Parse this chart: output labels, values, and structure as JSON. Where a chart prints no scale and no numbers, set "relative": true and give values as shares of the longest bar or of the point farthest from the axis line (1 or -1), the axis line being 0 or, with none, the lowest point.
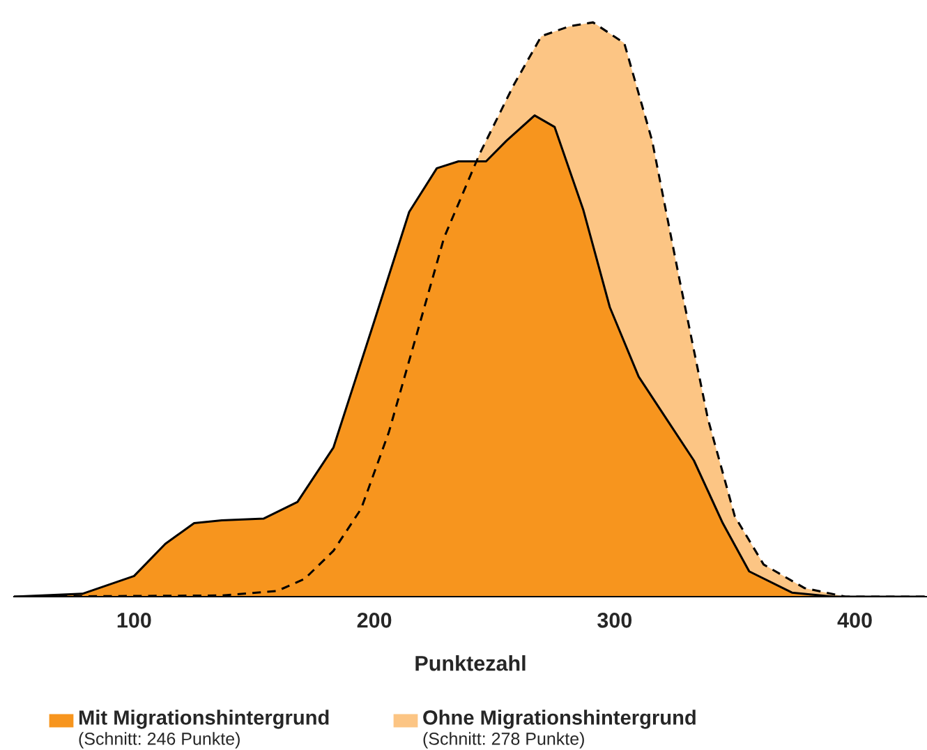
{
  "chart_data": {
    "type": "area",
    "relative": true,
    "xlabel": "Punktezahl",
    "xlim": [
      50,
      430
    ],
    "xticks": [
      100,
      200,
      300,
      400
    ],
    "legend": "bottom",
    "grid": false,
    "annotations": [
      "(Schnitt: 246 Punkte)",
      "(Schnitt: 278 Punkte)"
    ],
    "series": [
      {
        "name": "Mit Migrationshintergrund",
        "color": "#f7951e",
        "line_style": "solid",
        "x": [
          50,
          78.5,
          100,
          113,
          125,
          136.5,
          154,
          168,
          183,
          200,
          214.5,
          226,
          235,
          246.5,
          255,
          266.7,
          275,
          287,
          298,
          310,
          321.5,
          333,
          345,
          356,
          373.8,
          391,
          429
        ],
        "values": [
          0,
          0.005,
          0.036,
          0.092,
          0.128,
          0.133,
          0.136,
          0.165,
          0.26,
          0.48,
          0.67,
          0.746,
          0.758,
          0.758,
          0.794,
          0.838,
          0.818,
          0.673,
          0.504,
          0.383,
          0.31,
          0.237,
          0.128,
          0.044,
          0.007,
          0,
          0
        ]
      },
      {
        "name": "Ohne Migrationshintergrund",
        "color": "#fcc584",
        "line_style": "dashed",
        "x": [
          50,
          136.5,
          159.6,
          171,
          183,
          194.5,
          206,
          217.5,
          229,
          243.7,
          258,
          269.5,
          281,
          291,
          304,
          315.6,
          327,
          338.8,
          350,
          362,
          379,
          396,
          429
        ],
        "values": [
          0,
          0.002,
          0.01,
          0.031,
          0.08,
          0.153,
          0.286,
          0.455,
          0.625,
          0.77,
          0.891,
          0.976,
          0.993,
          1,
          0.964,
          0.794,
          0.552,
          0.31,
          0.14,
          0.056,
          0.015,
          0,
          0
        ]
      }
    ]
  }
}
